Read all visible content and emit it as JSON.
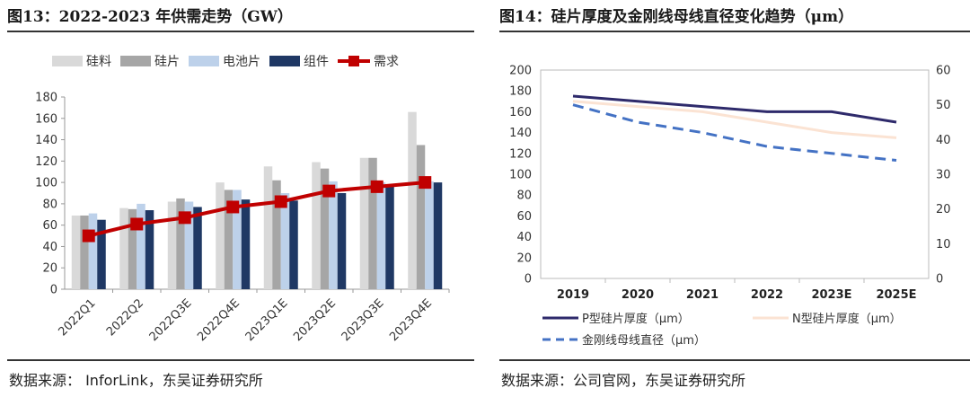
{
  "left": {
    "title": "图13：2022-2023 年供需走势（GW）",
    "source": "数据来源： InforLink，东吴证券研究所",
    "chart_data": {
      "type": "bar",
      "categories": [
        "2022Q1",
        "2022Q2",
        "2022Q3E",
        "2022Q4E",
        "2023Q1E",
        "2023Q2E",
        "2023Q3E",
        "2023Q4E"
      ],
      "series": [
        {
          "name": "硅料",
          "kind": "bar",
          "color": "#d9d9d9",
          "values": [
            69,
            76,
            82,
            100,
            115,
            119,
            123,
            166
          ]
        },
        {
          "name": "硅片",
          "kind": "bar",
          "color": "#a6a6a6",
          "values": [
            69,
            75,
            85,
            93,
            102,
            113,
            123,
            135
          ]
        },
        {
          "name": "电池片",
          "kind": "bar",
          "color": "#bdd1ea",
          "values": [
            71,
            80,
            82,
            93,
            90,
            101,
            100,
            101
          ]
        },
        {
          "name": "组件",
          "kind": "bar",
          "color": "#1f3864",
          "values": [
            65,
            74,
            77,
            84,
            83,
            90,
            96,
            100
          ]
        },
        {
          "name": "需求",
          "kind": "line",
          "color": "#c00000",
          "values": [
            50,
            61,
            67,
            77,
            82,
            92,
            96,
            100
          ]
        }
      ],
      "ylim": [
        0,
        180
      ],
      "yticks": [
        0,
        20,
        40,
        60,
        80,
        100,
        120,
        140,
        160,
        180
      ]
    }
  },
  "right": {
    "title": "图14：硅片厚度及金刚线母线直径变化趋势（μm）",
    "source": "数据来源：公司官网，东吴证券研究所",
    "chart_data": {
      "type": "line",
      "x": [
        "2019",
        "2020",
        "2021",
        "2022",
        "2023E",
        "2025E"
      ],
      "series": [
        {
          "name": "P型硅片厚度（μm）",
          "axis": "left",
          "style": "solid",
          "color": "#2e2a6b",
          "values": [
            175,
            170,
            165,
            160,
            160,
            150
          ]
        },
        {
          "name": "N型硅片厚度（μm）",
          "axis": "left",
          "style": "solid",
          "color": "#fbe3d3",
          "values": [
            170,
            165,
            160,
            150,
            140,
            135
          ]
        },
        {
          "name": "金刚线母线直径（μm）",
          "axis": "right",
          "style": "dashed",
          "color": "#4472c4",
          "values": [
            50,
            45,
            42,
            38,
            36,
            34
          ]
        }
      ],
      "ylim_left": [
        0,
        200
      ],
      "yticks_left": [
        0,
        20,
        40,
        60,
        80,
        100,
        120,
        140,
        160,
        180,
        200
      ],
      "ylim_right": [
        0,
        60
      ],
      "yticks_right": [
        0,
        10,
        20,
        30,
        40,
        50,
        60
      ]
    }
  }
}
